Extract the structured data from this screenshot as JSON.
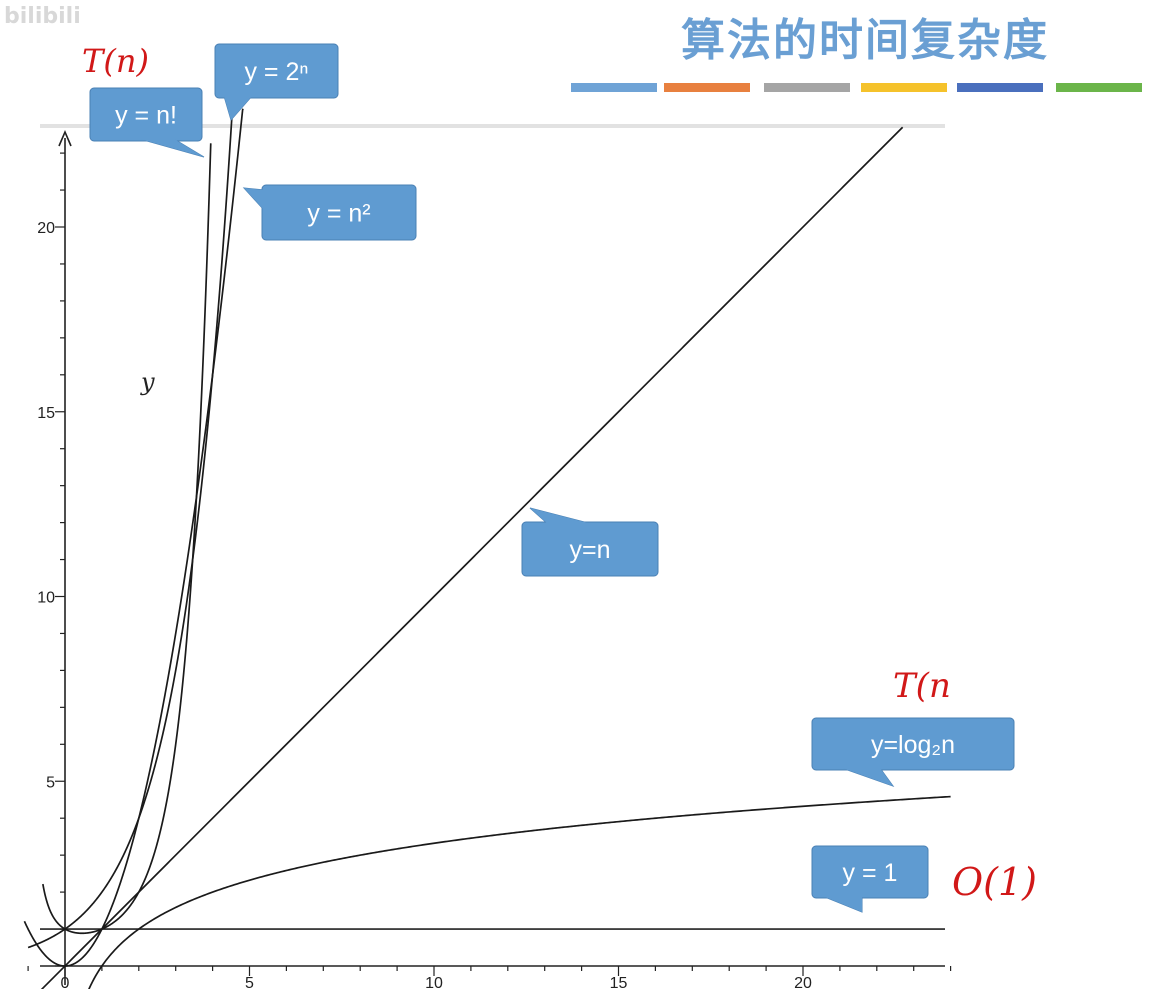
{
  "header": {
    "title": "算法的时间复杂度",
    "watermark": "bilibili",
    "stripe_colors": [
      "#6fa3d6",
      "#e8803f",
      "#a5a5a5",
      "#f5c22b",
      "#4a6fbd",
      "#6bb54a"
    ]
  },
  "annotations": {
    "top_left": "T(n)",
    "right_middle": "T(n",
    "bottom_right": "O(1)"
  },
  "chart_data": {
    "type": "line",
    "ylabel": "y",
    "xlabel": "",
    "xlim": [
      -1,
      24
    ],
    "ylim": [
      -1.5,
      23
    ],
    "x_ticks": [
      0,
      5,
      10,
      15,
      20
    ],
    "y_ticks": [
      5,
      10,
      15,
      20
    ],
    "callout_color": "#5f9bd1",
    "series": [
      {
        "name": "y = 1",
        "formula": "1"
      },
      {
        "name": "y=log₂n",
        "formula": "log2(n)"
      },
      {
        "name": "y=n",
        "formula": "n"
      },
      {
        "name": "y = n²",
        "formula": "n^2"
      },
      {
        "name": "y = 2ⁿ",
        "formula": "2^n"
      },
      {
        "name": "y = n!",
        "formula": "n!"
      }
    ]
  }
}
